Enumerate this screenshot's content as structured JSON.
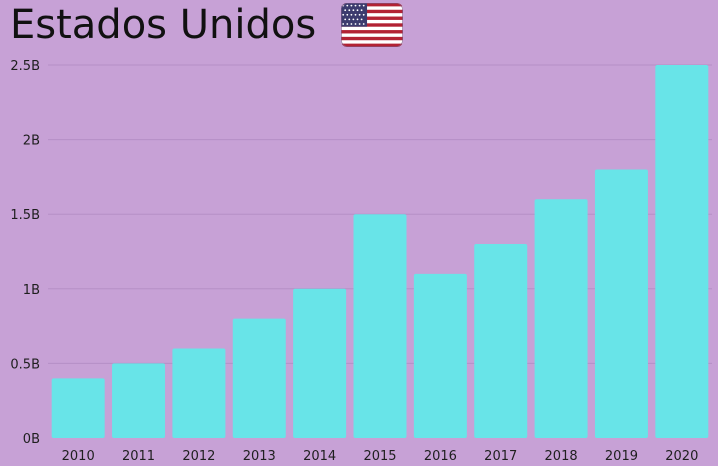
{
  "title": "Estados Unidos",
  "flag_icon": "us-flag-icon",
  "colors": {
    "background": "#c7a1d6",
    "bar": "#68e4e8",
    "grid": "#b58fc6",
    "text": "#111111",
    "axis_text": "#1f1f1f",
    "flag_red": "#b22234",
    "flag_white": "#ffffff",
    "flag_blue": "#3c3b6e"
  },
  "chart_data": {
    "type": "bar",
    "title": "Estados Unidos",
    "categories": [
      "2010",
      "2011",
      "2012",
      "2013",
      "2014",
      "2015",
      "2016",
      "2017",
      "2018",
      "2019",
      "2020"
    ],
    "values": [
      400000000,
      500000000,
      600000000,
      800000000,
      1000000000,
      1500000000,
      1100000000,
      1300000000,
      1600000000,
      1800000000,
      2500000000
    ],
    "ylim": [
      0,
      2500000000
    ],
    "yticks": [
      0,
      500000000,
      1000000000,
      1500000000,
      2000000000,
      2500000000
    ],
    "ytick_labels": [
      "0B",
      "0.5B",
      "1B",
      "1.5B",
      "2B",
      "2.5B"
    ],
    "xlabel": "",
    "ylabel": "",
    "grid": true
  }
}
